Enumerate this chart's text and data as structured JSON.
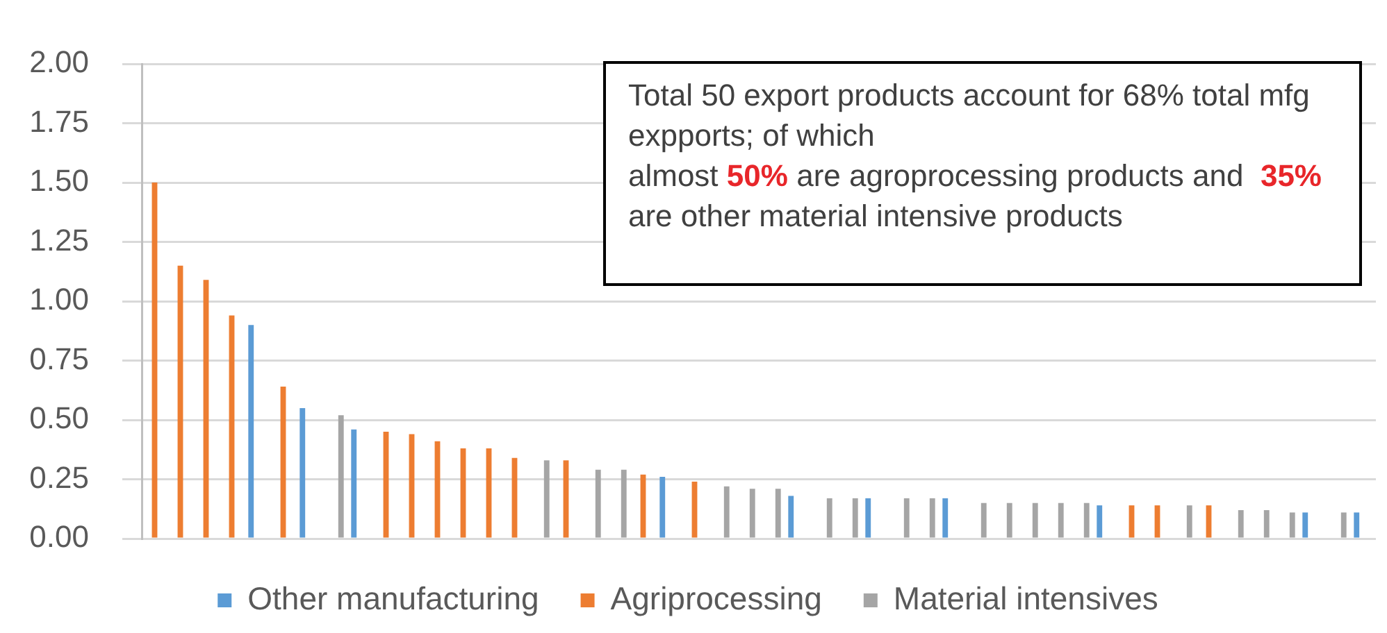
{
  "chart_data": {
    "type": "bar",
    "annotations": [
      "Total 50 export products account for 68% total mfg expports; of which",
      "almost 50% are agroprocessing products and  35% are other material intensive products"
    ],
    "categories": [
      null,
      null,
      null,
      null,
      null,
      null,
      null,
      null,
      null,
      null,
      null,
      null,
      null,
      null,
      null,
      null,
      null,
      null,
      null,
      null,
      null,
      null,
      null,
      null,
      null,
      null,
      null,
      null,
      null,
      null,
      null,
      null,
      null,
      null,
      null,
      null,
      null,
      null,
      null,
      null,
      null,
      null,
      null,
      null,
      null,
      null,
      null,
      null
    ],
    "series": [
      {
        "name": "Other manufacturing",
        "color": "#5b9bd5",
        "values": [
          null,
          null,
          null,
          null,
          0.9,
          null,
          0.55,
          null,
          0.46,
          null,
          null,
          null,
          null,
          null,
          null,
          null,
          null,
          null,
          null,
          null,
          0.26,
          null,
          null,
          null,
          null,
          0.18,
          null,
          null,
          0.17,
          null,
          null,
          0.17,
          null,
          null,
          null,
          null,
          null,
          0.14,
          null,
          null,
          null,
          null,
          null,
          null,
          null,
          0.11,
          null,
          0.11
        ]
      },
      {
        "name": "Agriprocessing",
        "color": "#ed7d31",
        "values": [
          1.5,
          1.15,
          1.09,
          0.94,
          null,
          0.64,
          null,
          null,
          null,
          0.45,
          0.44,
          0.41,
          0.38,
          0.38,
          0.34,
          null,
          0.33,
          null,
          null,
          0.27,
          null,
          0.24,
          null,
          null,
          null,
          null,
          null,
          null,
          null,
          null,
          null,
          null,
          null,
          null,
          null,
          null,
          null,
          null,
          0.14,
          0.14,
          null,
          0.14,
          null,
          null,
          null,
          null,
          null,
          null
        ]
      },
      {
        "name": "Material intensives",
        "color": "#a5a5a5",
        "values": [
          null,
          null,
          null,
          null,
          null,
          null,
          null,
          0.52,
          null,
          null,
          null,
          null,
          null,
          null,
          null,
          0.33,
          null,
          0.29,
          0.29,
          null,
          null,
          null,
          0.22,
          0.21,
          0.21,
          null,
          0.17,
          0.17,
          null,
          0.17,
          0.17,
          null,
          0.15,
          0.15,
          0.15,
          0.15,
          0.15,
          null,
          null,
          null,
          0.14,
          null,
          0.12,
          0.12,
          0.11,
          null,
          0.11,
          null
        ]
      }
    ],
    "ylim": [
      0,
      2
    ],
    "yticks": [
      {
        "value": 0,
        "label": "0.00"
      },
      {
        "value": 0.25,
        "label": "0.25"
      },
      {
        "value": 0.5,
        "label": "0.50"
      },
      {
        "value": 0.75,
        "label": "0.75"
      },
      {
        "value": 1,
        "label": "1.00"
      },
      {
        "value": 1.25,
        "label": "1.25"
      },
      {
        "value": 1.5,
        "label": "1.50"
      },
      {
        "value": 1.75,
        "label": "1.75"
      },
      {
        "value": 2,
        "label": "2.00"
      }
    ],
    "grid": "y",
    "legend": "bottom"
  }
}
